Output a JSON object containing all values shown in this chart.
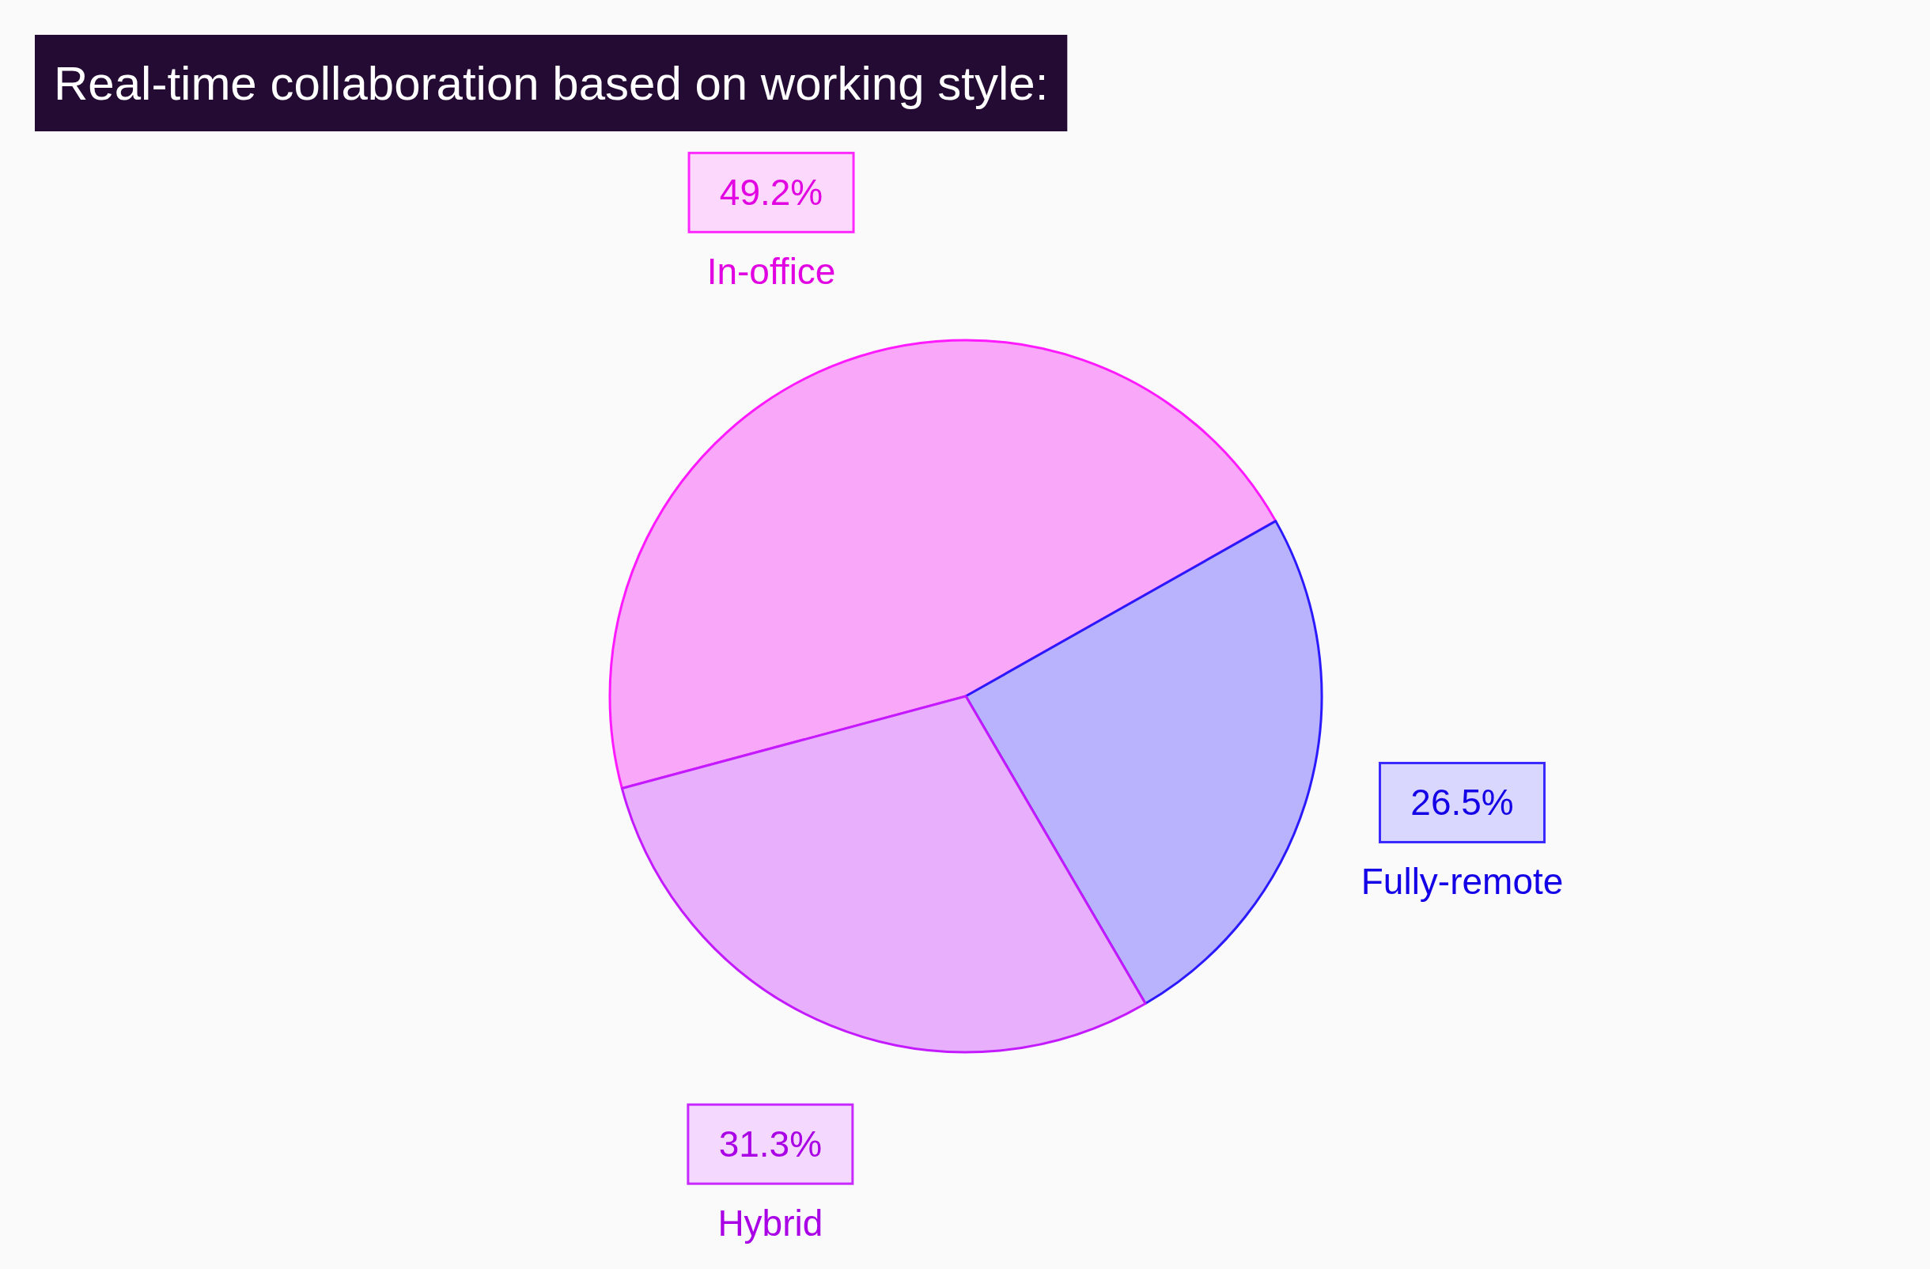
{
  "chart_data": {
    "type": "pie",
    "title": "Real-time collaboration based on working style:",
    "categories": [
      "In-office",
      "Fully-remote",
      "Hybrid"
    ],
    "values": [
      49.2,
      26.5,
      31.3
    ],
    "value_labels": [
      "49.2%",
      "26.5%",
      "31.3%"
    ],
    "colors": [
      "#f9a8f9",
      "#b9b3fd",
      "#e8b0fc"
    ]
  }
}
